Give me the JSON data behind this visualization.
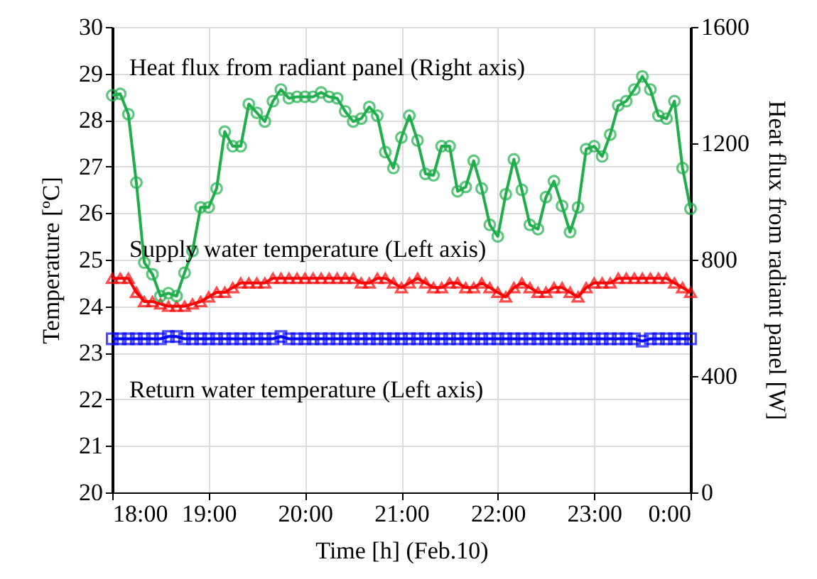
{
  "chart_data": {
    "type": "line",
    "xlabel": "Time [h] (Feb.10)",
    "ylabel": "Temperature [ºC]",
    "y2label": "Heat flux from radiant panel [W]",
    "x": [
      18,
      18.083,
      18.167,
      18.25,
      18.333,
      18.417,
      18.5,
      18.583,
      18.667,
      18.75,
      18.833,
      18.917,
      19,
      19.083,
      19.167,
      19.25,
      19.333,
      19.417,
      19.5,
      19.583,
      19.667,
      19.75,
      19.833,
      19.917,
      20,
      20.083,
      20.167,
      20.25,
      20.333,
      20.417,
      20.5,
      20.583,
      20.667,
      20.75,
      20.833,
      20.917,
      21,
      21.083,
      21.167,
      21.25,
      21.333,
      21.417,
      21.5,
      21.583,
      21.667,
      21.75,
      21.833,
      21.917,
      22,
      22.083,
      22.167,
      22.25,
      22.333,
      22.417,
      22.5,
      22.583,
      22.667,
      22.75,
      22.833,
      22.917,
      23,
      23.083,
      23.167,
      23.25,
      23.333,
      23.417,
      23.5,
      23.583,
      23.667,
      23.75,
      23.833,
      23.917,
      24
    ],
    "series": [
      {
        "name": "Heat flux from radiant panel (Right axis)",
        "color": "#1fae4b",
        "axis": "y2",
        "marker": "circle",
        "values": [
          1365,
          1370,
          1300,
          1065,
          790,
          750,
          675,
          685,
          675,
          755,
          830,
          980,
          980,
          1045,
          1240,
          1190,
          1190,
          1335,
          1305,
          1275,
          1345,
          1385,
          1355,
          1360,
          1360,
          1360,
          1375,
          1360,
          1355,
          1310,
          1275,
          1285,
          1325,
          1295,
          1170,
          1115,
          1220,
          1295,
          1210,
          1095,
          1090,
          1190,
          1190,
          1035,
          1050,
          1140,
          1045,
          920,
          880,
          1025,
          1145,
          1040,
          920,
          905,
          1015,
          1070,
          985,
          895,
          980,
          1180,
          1190,
          1155,
          1230,
          1330,
          1345,
          1385,
          1430,
          1385,
          1295,
          1285,
          1345,
          1115,
          975
        ]
      },
      {
        "name": "Supply water temperature (Left axis)",
        "color": "#ff0000",
        "marker": "triangle",
        "values": [
          24.6,
          24.6,
          24.6,
          24.3,
          24.1,
          24.1,
          24.05,
          24,
          24,
          24,
          24.05,
          24.1,
          24.2,
          24.3,
          24.3,
          24.4,
          24.5,
          24.5,
          24.5,
          24.5,
          24.6,
          24.6,
          24.6,
          24.6,
          24.6,
          24.6,
          24.6,
          24.6,
          24.6,
          24.6,
          24.6,
          24.5,
          24.5,
          24.6,
          24.6,
          24.5,
          24.4,
          24.5,
          24.6,
          24.5,
          24.4,
          24.4,
          24.5,
          24.5,
          24.4,
          24.4,
          24.5,
          24.4,
          24.3,
          24.2,
          24.4,
          24.5,
          24.4,
          24.3,
          24.3,
          24.4,
          24.4,
          24.3,
          24.2,
          24.4,
          24.5,
          24.5,
          24.5,
          24.6,
          24.6,
          24.6,
          24.6,
          24.6,
          24.6,
          24.6,
          24.5,
          24.4,
          24.3
        ]
      },
      {
        "name": "Return water temperature (Left axis)",
        "color": "#0000ff",
        "marker": "square",
        "values": [
          23.3,
          23.3,
          23.3,
          23.3,
          23.3,
          23.3,
          23.3,
          23.35,
          23.35,
          23.3,
          23.3,
          23.3,
          23.3,
          23.3,
          23.3,
          23.3,
          23.3,
          23.3,
          23.3,
          23.3,
          23.3,
          23.35,
          23.3,
          23.3,
          23.3,
          23.3,
          23.3,
          23.3,
          23.3,
          23.3,
          23.3,
          23.3,
          23.3,
          23.3,
          23.3,
          23.3,
          23.3,
          23.3,
          23.3,
          23.3,
          23.3,
          23.3,
          23.3,
          23.3,
          23.3,
          23.3,
          23.3,
          23.3,
          23.3,
          23.3,
          23.3,
          23.3,
          23.3,
          23.3,
          23.3,
          23.3,
          23.3,
          23.3,
          23.3,
          23.3,
          23.3,
          23.3,
          23.3,
          23.3,
          23.3,
          23.3,
          23.25,
          23.3,
          23.3,
          23.3,
          23.3,
          23.3,
          23.3
        ]
      }
    ],
    "xlim": [
      18,
      24
    ],
    "xticks": [
      {
        "value": 18,
        "label": "18:00"
      },
      {
        "value": 19,
        "label": "19:00"
      },
      {
        "value": 20,
        "label": "20:00"
      },
      {
        "value": 21,
        "label": "21:00"
      },
      {
        "value": 22,
        "label": "22:00"
      },
      {
        "value": 23,
        "label": "23:00"
      },
      {
        "value": 24,
        "label": "0:00"
      }
    ],
    "ylim": [
      20,
      30
    ],
    "yticks": [
      20,
      21,
      22,
      23,
      24,
      25,
      26,
      27,
      28,
      29,
      30
    ],
    "y2lim": [
      0,
      1600
    ],
    "y2ticks": [
      0,
      400,
      800,
      1200,
      1600
    ],
    "grid": true,
    "legend": false,
    "line_style": "solid"
  }
}
